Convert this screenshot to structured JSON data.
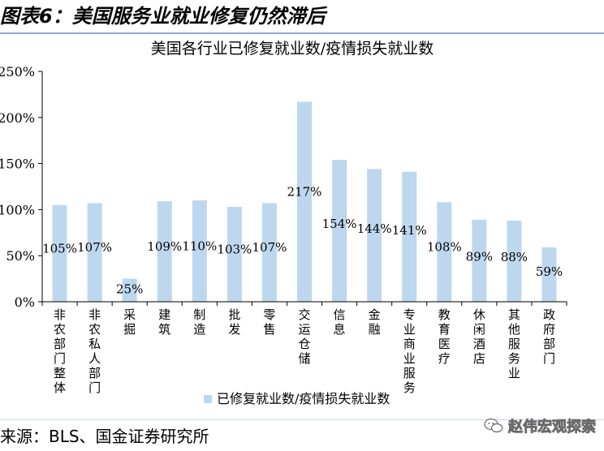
{
  "figure_title": "图表6：美国服务业就业修复仍然滞后",
  "source": "来源：BLS、国金证券研究所",
  "watermark": "赵伟宏观探索",
  "colors": {
    "bar": "#bdd7ee",
    "rule": "#8ba9d4",
    "axis": "#000000"
  },
  "chart_data": {
    "type": "bar",
    "title": "美国各行业已修复就业数/疫情损失就业数",
    "categories": [
      "非农部门整体",
      "非农私人部门",
      "采掘",
      "建筑",
      "制造",
      "批发",
      "零售",
      "交运仓储",
      "信息",
      "金融",
      "专业商业服务",
      "教育医疗",
      "休闲酒店",
      "其他服务业",
      "政府部门"
    ],
    "series": [
      {
        "name": "已修复就业数/疫情损失就业数",
        "values": [
          105,
          107,
          25,
          109,
          110,
          103,
          107,
          217,
          154,
          144,
          141,
          108,
          89,
          88,
          59
        ],
        "labels": [
          "105%",
          "107%",
          "25%",
          "109%",
          "110%",
          "103%",
          "107%",
          "217%",
          "154%",
          "144%",
          "141%",
          "108%",
          "89%",
          "88%",
          "59%"
        ]
      }
    ],
    "ylim": [
      0,
      250
    ],
    "yticks": [
      "0%",
      "50%",
      "100%",
      "150%",
      "200%",
      "250%"
    ],
    "grid": false,
    "legend_position": "bottom"
  }
}
